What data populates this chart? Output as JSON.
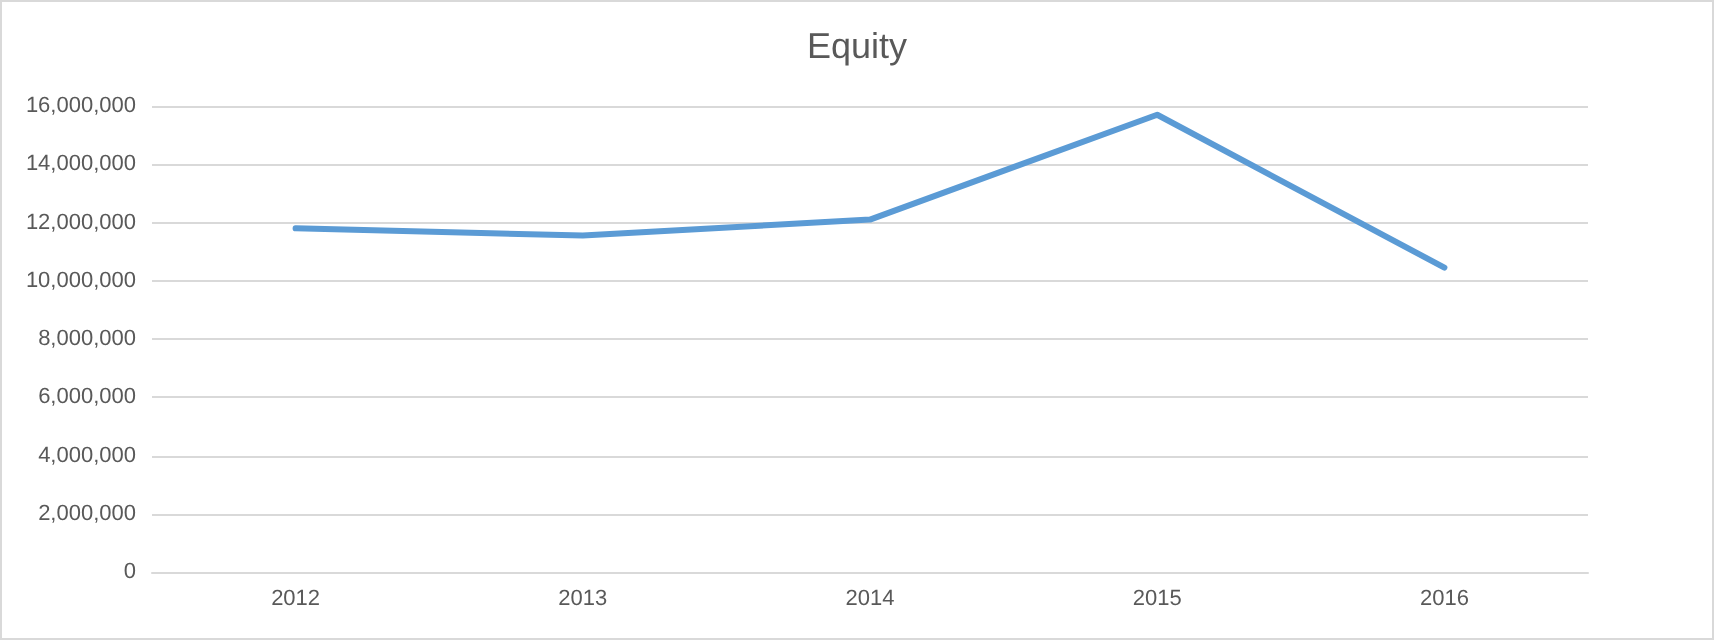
{
  "chart_data": {
    "type": "line",
    "title": "Equity",
    "categories": [
      "2012",
      "2013",
      "2014",
      "2015",
      "2016"
    ],
    "series": [
      {
        "color": "#5b9bd5",
        "values": [
          11800000,
          11550000,
          12100000,
          15700000,
          10450000
        ]
      }
    ],
    "ylim": [
      0,
      16000000
    ],
    "yticks": [
      0,
      {
        "value": 2000000,
        "label": "2,000,000"
      },
      {
        "value": 4000000,
        "label": "4,000,000"
      },
      {
        "value": 6000000,
        "label": "6,000,000"
      },
      {
        "value": 8000000,
        "label": "8,000,000"
      },
      {
        "value": 10000000,
        "label": "10,000,000"
      },
      {
        "value": 12000000,
        "label": "12,000,000"
      },
      {
        "value": 14000000,
        "label": "14,000,000"
      },
      {
        "value": 16000000,
        "label": "16,000,000"
      }
    ],
    "grid": "y",
    "marker": "none",
    "line_style": "solid"
  }
}
